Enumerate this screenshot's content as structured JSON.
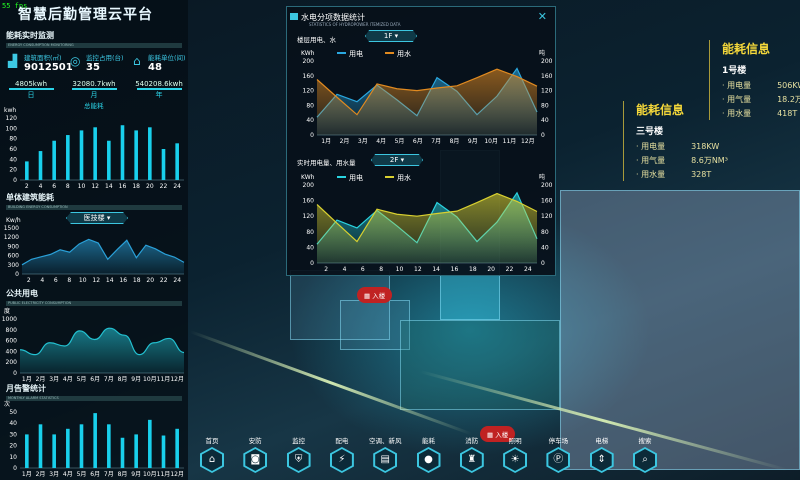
{
  "fps": "55 fps",
  "title": "智慧后勤管理云平台",
  "monitor": {
    "title": "能耗实时监测",
    "subtitle": "ENERGY CONSUMPTION MONITORING",
    "stats": [
      {
        "icon": "chart-icon",
        "label": "建筑面积(㎡)",
        "value": "9012501"
      },
      {
        "icon": "camera-icon",
        "label": "监控占用(台)",
        "value": "35"
      },
      {
        "icon": "home-icon",
        "label": "能耗单位(间)",
        "value": "48"
      }
    ],
    "periods": [
      {
        "value": "4805kwh",
        "label": "日"
      },
      {
        "value": "32080.7kwh",
        "label": "月"
      },
      {
        "value": "540208.6kwh",
        "label": "年"
      }
    ]
  },
  "chart_data": [
    {
      "id": "total",
      "type": "bar",
      "title": "总能耗",
      "ylabel": "kwh",
      "ylim": [
        0,
        120
      ],
      "yticks": [
        0,
        20,
        40,
        60,
        80,
        100,
        120
      ],
      "categories": [
        "2",
        "4",
        "6",
        "8",
        "10",
        "12",
        "14",
        "16",
        "18",
        "20",
        "22",
        "24"
      ],
      "values": [
        36,
        56,
        76,
        87,
        96,
        102,
        76,
        106,
        96,
        102,
        60,
        71
      ]
    },
    {
      "id": "building",
      "type": "area",
      "ylabel": "Kw/h",
      "ylim": [
        0,
        1500
      ],
      "yticks": [
        0,
        300,
        600,
        900,
        1200,
        1500
      ],
      "xticks": [
        "2",
        "4",
        "6",
        "8",
        "10",
        "12",
        "14",
        "16",
        "18",
        "20",
        "22",
        "24"
      ],
      "values": [
        300,
        480,
        560,
        640,
        790,
        710,
        980,
        1130,
        1010,
        480,
        800,
        1100,
        530,
        940,
        820,
        650,
        550,
        380
      ]
    },
    {
      "id": "public",
      "type": "area",
      "smooth": true,
      "ylabel": "度",
      "ylim": [
        0,
        1000
      ],
      "yticks": [
        0,
        200,
        400,
        600,
        800,
        1000
      ],
      "xticks": [
        "1月",
        "2月",
        "3月",
        "4月",
        "5月",
        "6月",
        "7月",
        "8月",
        "9月",
        "10月",
        "11月",
        "12月"
      ],
      "values": [
        430,
        340,
        560,
        500,
        780,
        620,
        830,
        700,
        340,
        560,
        640,
        380
      ]
    },
    {
      "id": "alarm",
      "type": "bar",
      "ylabel": "次",
      "ylim": [
        0,
        50
      ],
      "yticks": [
        0,
        10,
        20,
        30,
        40,
        50
      ],
      "categories": [
        "1月",
        "2月",
        "3月",
        "4月",
        "5月",
        "6月",
        "7月",
        "8月",
        "9月",
        "10月",
        "11月",
        "12月"
      ],
      "values": [
        30,
        39,
        30,
        35,
        39,
        49,
        39,
        27,
        30,
        43,
        29,
        35
      ]
    },
    {
      "id": "floor",
      "type": "area",
      "ylabel": "KWh",
      "y2label": "吨",
      "ylim": [
        0,
        200
      ],
      "yticks": [
        0,
        40,
        80,
        120,
        160,
        200
      ],
      "xticks": [
        "1月",
        "2月",
        "3月",
        "4月",
        "5月",
        "6月",
        "7月",
        "8月",
        "9月",
        "10月",
        "11月",
        "12月"
      ],
      "series": [
        {
          "name": "用电",
          "color": "#2aa8e0",
          "values": [
            48,
            110,
            90,
            135,
            95,
            52,
            155,
            118,
            55,
            105,
            180,
            62
          ]
        },
        {
          "name": "用水",
          "color": "#e08a20",
          "values": [
            150,
            102,
            55,
            138,
            125,
            120,
            127,
            133,
            155,
            178,
            158,
            132
          ]
        }
      ]
    },
    {
      "id": "realtime",
      "type": "area",
      "ylabel": "KWh",
      "y2label": "吨",
      "ylim": [
        0,
        200
      ],
      "yticks": [
        0,
        40,
        80,
        120,
        160,
        200
      ],
      "xticks": [
        "2",
        "4",
        "6",
        "8",
        "10",
        "12",
        "14",
        "16",
        "18",
        "20",
        "22",
        "24"
      ],
      "series": [
        {
          "name": "用电",
          "color": "#2ad4e0",
          "values": [
            48,
            110,
            90,
            135,
            95,
            52,
            155,
            118,
            55,
            105,
            180,
            62
          ]
        },
        {
          "name": "用水",
          "color": "#d8d030",
          "values": [
            150,
            102,
            55,
            138,
            125,
            120,
            127,
            133,
            155,
            178,
            158,
            132
          ]
        }
      ]
    }
  ],
  "sections": {
    "building": {
      "title": "单体建筑能耗",
      "subtitle": "BUILDING ENERGY CONSUMPTION",
      "select": "医技楼"
    },
    "public": {
      "title": "公共用电",
      "subtitle": "PUBLIC ELECTRICITY CONSUMPTION"
    },
    "alarm": {
      "title": "月告警统计",
      "subtitle": "MONTHLY ALARM STATISTICS"
    }
  },
  "modal": {
    "title": "水电分项数据统计",
    "subtitle": "STATISTICS OF HYDROPOWER ITEMIZED DATA",
    "floor_label": "楼层用电、水",
    "floor_select": "1F",
    "realtime_label": "实时用电量、用水量",
    "realtime_select": "2F"
  },
  "info1": {
    "title": "能耗信息",
    "building": "1号楼",
    "rows": [
      {
        "k": "用电量",
        "v": "506KW"
      },
      {
        "k": "用气量",
        "v": "18.2万NM³"
      },
      {
        "k": "用水量",
        "v": "418T"
      }
    ]
  },
  "info2": {
    "title": "能耗信息",
    "building": "三号楼",
    "rows": [
      {
        "k": "用电量",
        "v": "318KW"
      },
      {
        "k": "用气量",
        "v": "8.6万NM³"
      },
      {
        "k": "用水量",
        "v": "328T"
      }
    ]
  },
  "pins": [
    "入楼",
    "入楼"
  ],
  "nav": [
    {
      "label": "首页",
      "icon": "home-icon",
      "g": "⌂"
    },
    {
      "label": "安防",
      "icon": "cctv-icon",
      "g": "◙"
    },
    {
      "label": "监控",
      "icon": "shield-icon",
      "g": "⛨"
    },
    {
      "label": "配电",
      "icon": "lightning-icon",
      "g": "⚡"
    },
    {
      "label": "空调、新风",
      "icon": "air-conditioner-icon",
      "g": "▤"
    },
    {
      "label": "能耗",
      "icon": "water-drop-icon",
      "g": "●"
    },
    {
      "label": "消防",
      "icon": "hydrant-icon",
      "g": "♜"
    },
    {
      "label": "照明",
      "icon": "bulb-icon",
      "g": "☀"
    },
    {
      "label": "停车场",
      "icon": "parking-icon",
      "g": "Ⓟ"
    },
    {
      "label": "电梯",
      "icon": "elevator-icon",
      "g": "⇕"
    },
    {
      "label": "搜索",
      "icon": "search-icon",
      "g": "⌕"
    }
  ]
}
